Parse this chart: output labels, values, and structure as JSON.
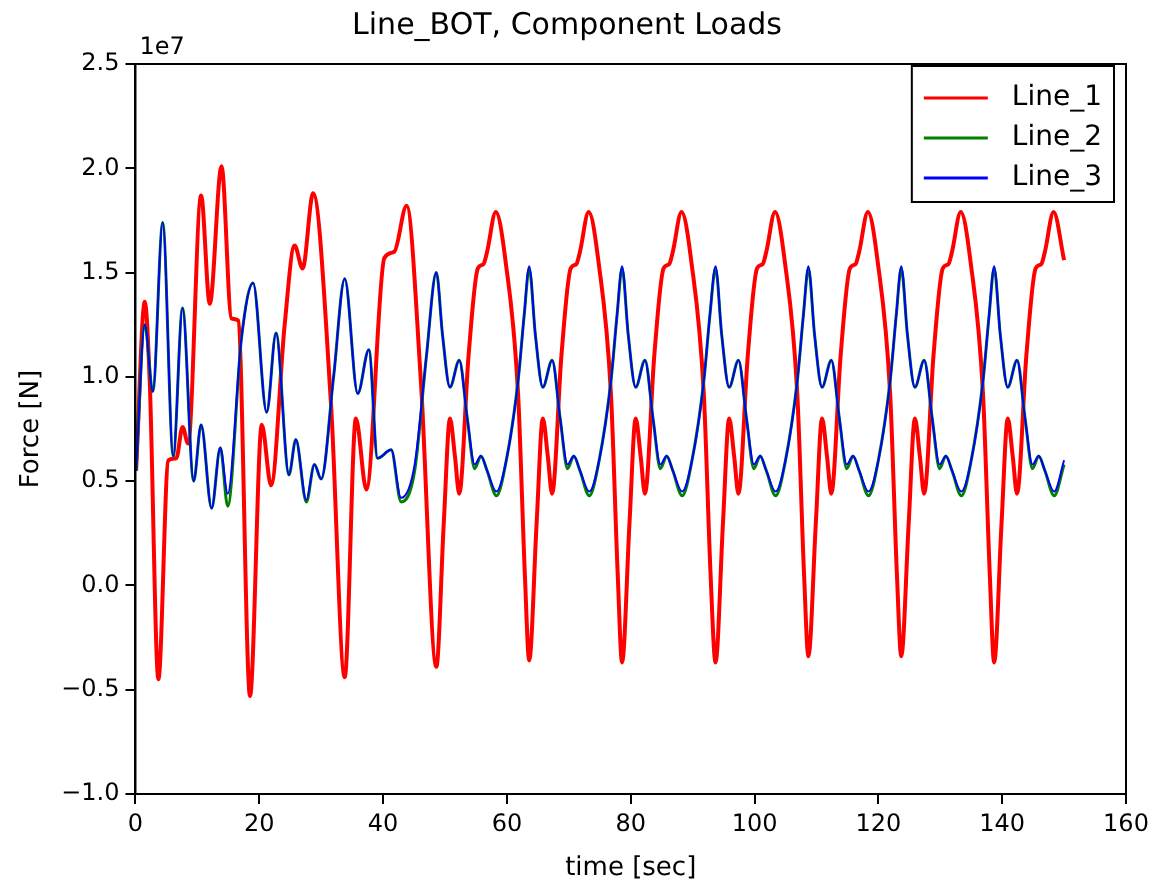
{
  "chart_data": {
    "type": "line",
    "title": "Line_BOT, Component Loads",
    "xlabel": "time [sec]",
    "ylabel": "Force [N]",
    "annotations": [
      "1e7"
    ],
    "xlim": [
      0,
      160
    ],
    "xticks": [
      0,
      20,
      40,
      60,
      80,
      100,
      120,
      140,
      160
    ],
    "ylim": [
      -1,
      2.5
    ],
    "yticks": [
      {
        "value": -1,
        "label": "−1.0"
      },
      {
        "value": -0.5,
        "label": "−0.5"
      },
      {
        "value": 0,
        "label": "0.0"
      },
      0.5,
      {
        "value": 1,
        "label": "1.0"
      },
      1.5,
      {
        "value": 2,
        "label": "2.0"
      },
      2.5
    ],
    "grid": false,
    "legend": "top right",
    "line_style": "solid",
    "series": [
      {
        "name": "Line_1",
        "color": "#ff0000",
        "x": [
          0.1,
          1.5,
          2.3,
          3.7,
          5.3,
          6.6,
          7.6,
          8.5,
          10.6,
          12.0,
          13.9,
          15.5,
          16.6,
          18.5,
          20.4,
          21.9,
          24.1,
          25.7,
          27.0,
          28.7,
          31.6,
          33.8,
          35.6,
          37.3,
          40.2,
          41.8,
          43.8,
          46.1,
          48.6,
          49.8,
          50.8,
          51.6,
          52.3,
          53.8,
          55.3,
          56.2,
          56.8,
          58.2,
          59.8,
          61.8,
          62.9,
          63.6,
          64.8,
          65.8,
          66.6,
          67.3,
          68.8,
          70.3,
          71.2,
          71.8,
          73.2,
          74.8,
          76.8,
          77.9,
          78.6,
          79.8,
          80.8,
          81.6,
          82.3,
          83.8,
          85.3,
          86.2,
          86.8,
          88.2,
          89.8,
          91.8,
          92.9,
          93.7,
          94.9,
          95.9,
          96.7,
          97.4,
          98.9,
          100.4,
          101.3,
          101.9,
          103.3,
          104.9,
          106.9,
          108.0,
          108.7,
          109.9,
          110.9,
          111.7,
          112.4,
          113.9,
          115.4,
          116.3,
          116.9,
          118.3,
          119.9,
          121.9,
          123.0,
          123.7,
          124.9,
          125.9,
          126.7,
          127.4,
          128.9,
          130.4,
          131.3,
          131.9,
          133.3,
          134.9,
          136.9,
          138.0,
          138.7,
          139.9,
          140.9,
          141.7,
          142.4,
          143.9,
          145.4,
          146.3,
          146.9,
          148.3,
          150.0
        ],
        "values": [
          0.55,
          1.36,
          0.98,
          -0.45,
          0.6,
          0.61,
          0.76,
          0.68,
          1.87,
          1.35,
          2.01,
          1.28,
          1.27,
          -0.53,
          0.77,
          0.48,
          1.25,
          1.63,
          1.52,
          1.88,
          0.86,
          -0.44,
          0.8,
          0.46,
          1.57,
          1.6,
          1.82,
          0.98,
          -0.39,
          0.3,
          0.8,
          0.62,
          0.44,
          1.1,
          1.52,
          1.54,
          1.6,
          1.79,
          1.55,
          0.92,
          0.05,
          -0.36,
          0.3,
          0.8,
          0.62,
          0.44,
          1.1,
          1.52,
          1.54,
          1.6,
          1.79,
          1.55,
          0.92,
          0.05,
          -0.37,
          0.3,
          0.8,
          0.62,
          0.44,
          1.1,
          1.52,
          1.54,
          1.6,
          1.79,
          1.55,
          0.92,
          0.05,
          -0.37,
          0.3,
          0.8,
          0.62,
          0.44,
          1.1,
          1.52,
          1.54,
          1.6,
          1.79,
          1.55,
          0.92,
          0.05,
          -0.34,
          0.3,
          0.8,
          0.62,
          0.44,
          1.1,
          1.52,
          1.54,
          1.6,
          1.79,
          1.55,
          0.92,
          0.05,
          -0.34,
          0.3,
          0.8,
          0.62,
          0.44,
          1.1,
          1.52,
          1.54,
          1.6,
          1.79,
          1.55,
          0.92,
          0.05,
          -0.37,
          0.3,
          0.8,
          0.62,
          0.44,
          1.1,
          1.52,
          1.54,
          1.6,
          1.79,
          1.56
        ]
      },
      {
        "name": "Line_2",
        "color": "#008000",
        "x": [
          0.1,
          1.5,
          2.8,
          4.4,
          6.1,
          7.6,
          9.4,
          10.6,
          12.3,
          13.7,
          14.9,
          17.1,
          19.0,
          21.2,
          22.7,
          24.8,
          25.9,
          27.6,
          28.9,
          30.0,
          32.0,
          33.8,
          35.9,
          37.7,
          39.1,
          41.3,
          42.9,
          45.1,
          47.0,
          48.6,
          49.6,
          50.8,
          52.3,
          53.6,
          54.8,
          55.8,
          56.8,
          58.3,
          59.9,
          61.8,
          62.8,
          63.6,
          64.6,
          65.8,
          67.3,
          68.6,
          69.8,
          70.8,
          71.8,
          73.3,
          74.9,
          76.8,
          77.8,
          78.6,
          79.6,
          80.8,
          82.3,
          83.6,
          84.8,
          85.8,
          86.8,
          88.3,
          89.9,
          91.8,
          92.8,
          93.7,
          94.7,
          95.9,
          97.4,
          98.7,
          99.9,
          100.9,
          101.9,
          103.4,
          105.0,
          106.9,
          107.9,
          108.7,
          109.7,
          110.9,
          112.4,
          113.7,
          114.9,
          115.9,
          116.9,
          118.4,
          120.0,
          121.9,
          122.9,
          123.7,
          124.7,
          125.9,
          127.4,
          128.7,
          129.9,
          130.9,
          131.9,
          133.4,
          135.0,
          136.9,
          137.9,
          138.7,
          139.7,
          140.9,
          142.4,
          143.7,
          144.9,
          145.9,
          146.9,
          148.4,
          150.0
        ],
        "values": [
          0.55,
          1.25,
          0.93,
          1.74,
          0.62,
          1.33,
          0.5,
          0.77,
          0.37,
          0.66,
          0.38,
          1.18,
          1.45,
          0.83,
          1.21,
          0.53,
          0.7,
          0.4,
          0.58,
          0.51,
          1.0,
          1.47,
          0.92,
          1.13,
          0.61,
          0.65,
          0.4,
          0.55,
          1.1,
          1.5,
          1.2,
          0.95,
          1.08,
          0.8,
          0.56,
          0.62,
          0.55,
          0.43,
          0.6,
          0.98,
          1.3,
          1.52,
          1.2,
          0.95,
          1.08,
          0.8,
          0.56,
          0.62,
          0.55,
          0.43,
          0.6,
          0.98,
          1.3,
          1.52,
          1.2,
          0.95,
          1.08,
          0.8,
          0.56,
          0.62,
          0.55,
          0.43,
          0.6,
          0.98,
          1.3,
          1.52,
          1.2,
          0.95,
          1.08,
          0.8,
          0.56,
          0.62,
          0.55,
          0.43,
          0.6,
          0.98,
          1.3,
          1.52,
          1.2,
          0.95,
          1.08,
          0.8,
          0.56,
          0.62,
          0.55,
          0.43,
          0.6,
          0.98,
          1.3,
          1.52,
          1.2,
          0.95,
          1.08,
          0.8,
          0.56,
          0.62,
          0.55,
          0.43,
          0.6,
          0.98,
          1.3,
          1.52,
          1.2,
          0.95,
          1.08,
          0.8,
          0.56,
          0.62,
          0.55,
          0.43,
          0.58
        ]
      },
      {
        "name": "Line_3",
        "color": "#0000ff",
        "x": [
          0.1,
          1.5,
          2.8,
          4.4,
          6.1,
          7.6,
          9.4,
          10.6,
          12.3,
          13.7,
          14.9,
          17.1,
          19.0,
          21.2,
          22.7,
          24.8,
          25.9,
          27.6,
          28.9,
          30.0,
          32.0,
          33.8,
          35.9,
          37.7,
          39.1,
          41.3,
          42.9,
          45.1,
          47.0,
          48.6,
          49.6,
          50.8,
          52.3,
          53.6,
          54.8,
          55.8,
          56.8,
          58.3,
          59.9,
          61.8,
          62.8,
          63.6,
          64.6,
          65.8,
          67.3,
          68.6,
          69.8,
          70.8,
          71.8,
          73.3,
          74.9,
          76.8,
          77.8,
          78.6,
          79.6,
          80.8,
          82.3,
          83.6,
          84.8,
          85.8,
          86.8,
          88.3,
          89.9,
          91.8,
          92.8,
          93.7,
          94.7,
          95.9,
          97.4,
          98.7,
          99.9,
          100.9,
          101.9,
          103.4,
          105.0,
          106.9,
          107.9,
          108.7,
          109.7,
          110.9,
          112.4,
          113.7,
          114.9,
          115.9,
          116.9,
          118.4,
          120.0,
          121.9,
          122.9,
          123.7,
          124.7,
          125.9,
          127.4,
          128.7,
          129.9,
          130.9,
          131.9,
          133.4,
          135.0,
          136.9,
          137.9,
          138.7,
          139.7,
          140.9,
          142.4,
          143.7,
          144.9,
          145.9,
          146.9,
          148.4,
          150.0
        ],
        "values": [
          0.55,
          1.25,
          0.93,
          1.74,
          0.62,
          1.33,
          0.5,
          0.77,
          0.37,
          0.66,
          0.44,
          1.18,
          1.45,
          0.83,
          1.21,
          0.53,
          0.7,
          0.41,
          0.58,
          0.51,
          1.0,
          1.47,
          0.92,
          1.13,
          0.61,
          0.65,
          0.42,
          0.58,
          1.1,
          1.5,
          1.2,
          0.95,
          1.08,
          0.8,
          0.58,
          0.62,
          0.55,
          0.45,
          0.6,
          0.98,
          1.3,
          1.53,
          1.2,
          0.95,
          1.08,
          0.8,
          0.58,
          0.62,
          0.55,
          0.45,
          0.6,
          0.98,
          1.3,
          1.53,
          1.2,
          0.95,
          1.08,
          0.8,
          0.58,
          0.62,
          0.55,
          0.45,
          0.6,
          0.98,
          1.3,
          1.53,
          1.2,
          0.95,
          1.08,
          0.8,
          0.58,
          0.62,
          0.55,
          0.45,
          0.6,
          0.98,
          1.3,
          1.53,
          1.2,
          0.95,
          1.08,
          0.8,
          0.58,
          0.62,
          0.55,
          0.45,
          0.6,
          0.98,
          1.3,
          1.53,
          1.2,
          0.95,
          1.08,
          0.8,
          0.58,
          0.62,
          0.55,
          0.45,
          0.6,
          0.98,
          1.3,
          1.53,
          1.2,
          0.95,
          1.08,
          0.8,
          0.58,
          0.62,
          0.55,
          0.45,
          0.6
        ]
      }
    ]
  }
}
